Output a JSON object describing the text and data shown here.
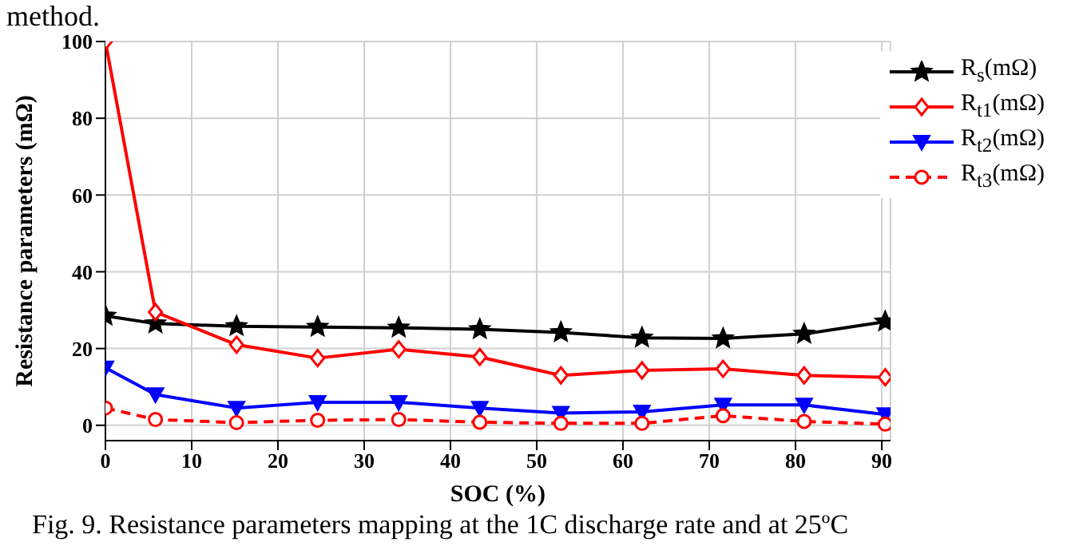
{
  "chart_data": {
    "type": "line",
    "xlabel": "SOC (%)",
    "ylabel": "Resistance parameters (mΩ)",
    "annotations": [
      "method.",
      "Fig. 9. Resistance parameters mapping at the 1C discharge rate and at 25ºC"
    ],
    "x": [
      0,
      5.8,
      15.2,
      24.6,
      34,
      43.4,
      52.8,
      62.2,
      71.6,
      81,
      90.4
    ],
    "series": [
      {
        "name": "R$_{s}$(mΩ)",
        "color": "#000000",
        "marker": "star",
        "line_style": "solid",
        "values": [
          28.5,
          26.5,
          25.8,
          25.6,
          25.4,
          25.0,
          24.2,
          22.8,
          22.6,
          23.8,
          27.0
        ]
      },
      {
        "name": "R$_{t1}$(mΩ)",
        "color": "#ff0000",
        "marker": "diamond",
        "line_style": "solid",
        "values": [
          100,
          29.5,
          21,
          17.5,
          19.8,
          17.8,
          13,
          14.3,
          14.7,
          13,
          12.5
        ]
      },
      {
        "name": "R$_{t2}$(mΩ)",
        "color": "#0000ff",
        "marker": "triangle",
        "line_style": "solid",
        "values": [
          15,
          8,
          4.5,
          6,
          6,
          4.5,
          3.2,
          3.5,
          5.3,
          5.3,
          2.8
        ]
      },
      {
        "name": "R$_{t3}$(mΩ)",
        "color": "#ff0000",
        "marker": "circle",
        "line_style": "dashed",
        "values": [
          4.5,
          1.5,
          0.7,
          1.3,
          1.5,
          0.8,
          0.5,
          0.5,
          2.5,
          1.0,
          0.3
        ]
      }
    ],
    "xlim": [
      0,
      91
    ],
    "xticks": [
      0,
      10,
      20,
      30,
      40,
      50,
      60,
      70,
      80,
      90
    ],
    "ylim": [
      -4,
      100
    ],
    "yticks": [
      0,
      20,
      40,
      60,
      80,
      100
    ],
    "grid": true,
    "legend": "top right"
  }
}
